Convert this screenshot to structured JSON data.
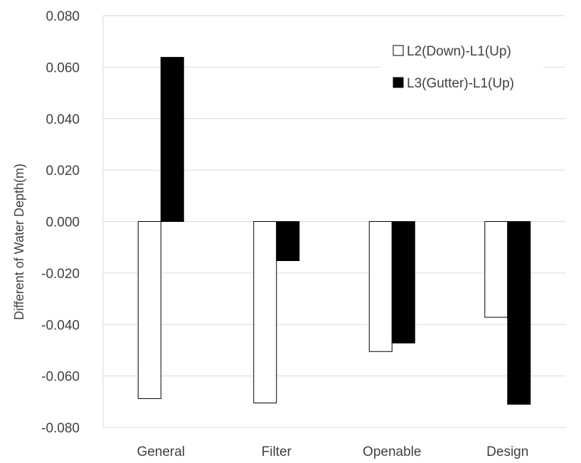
{
  "chart_data": {
    "type": "bar",
    "title": "",
    "xlabel": "",
    "ylabel": "Different of  Water Depth(m)",
    "ylim": [
      -0.08,
      0.08
    ],
    "yticks": [
      "-0.080",
      "-0.060",
      "-0.040",
      "-0.020",
      "0.000",
      "0.020",
      "0.040",
      "0.060",
      "0.080"
    ],
    "categories": [
      "General",
      "Filter",
      "Openable",
      "Design"
    ],
    "series": [
      {
        "name": "L2(Down)-L1(Up)",
        "values": [
          -0.0688,
          -0.0705,
          -0.0505,
          -0.0372
        ],
        "color": "#ffffff"
      },
      {
        "name": "L3(Gutter)-L1(Up)",
        "values": [
          0.0638,
          -0.0152,
          -0.0472,
          -0.071
        ],
        "color": "#000000"
      }
    ],
    "grid": true,
    "legend_position": "top-right"
  }
}
